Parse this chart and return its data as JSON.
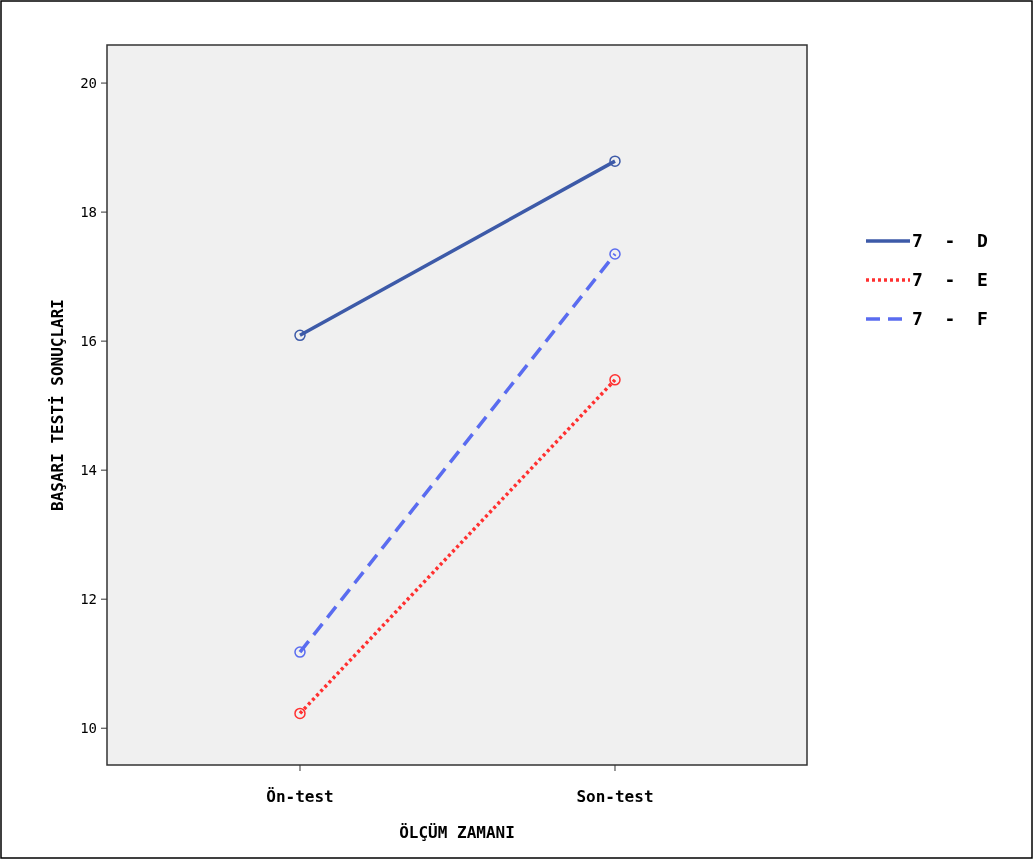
{
  "chart_data": {
    "type": "line",
    "xlabel": "ÖLÇÜM ZAMANI",
    "ylabel": "BAŞARI TESTİ SONUÇLARI",
    "categories": [
      "Ön-test",
      "Son-test"
    ],
    "ylim": [
      9.43,
      20.59
    ],
    "yticks": [
      10,
      12,
      14,
      16,
      18,
      20
    ],
    "grid": false,
    "legend": "right",
    "marker": "circle",
    "series": [
      {
        "name": "7  -  D",
        "color": "#3d5aa8",
        "line_style": "solid",
        "values": [
          16.09,
          18.79
        ]
      },
      {
        "name": "7  -  E",
        "color": "#ff3030",
        "line_style": "dotted",
        "values": [
          10.23,
          15.4
        ]
      },
      {
        "name": "7  -  F",
        "color": "#5a6cf0",
        "line_style": "dashed",
        "values": [
          11.18,
          17.35
        ]
      }
    ]
  }
}
